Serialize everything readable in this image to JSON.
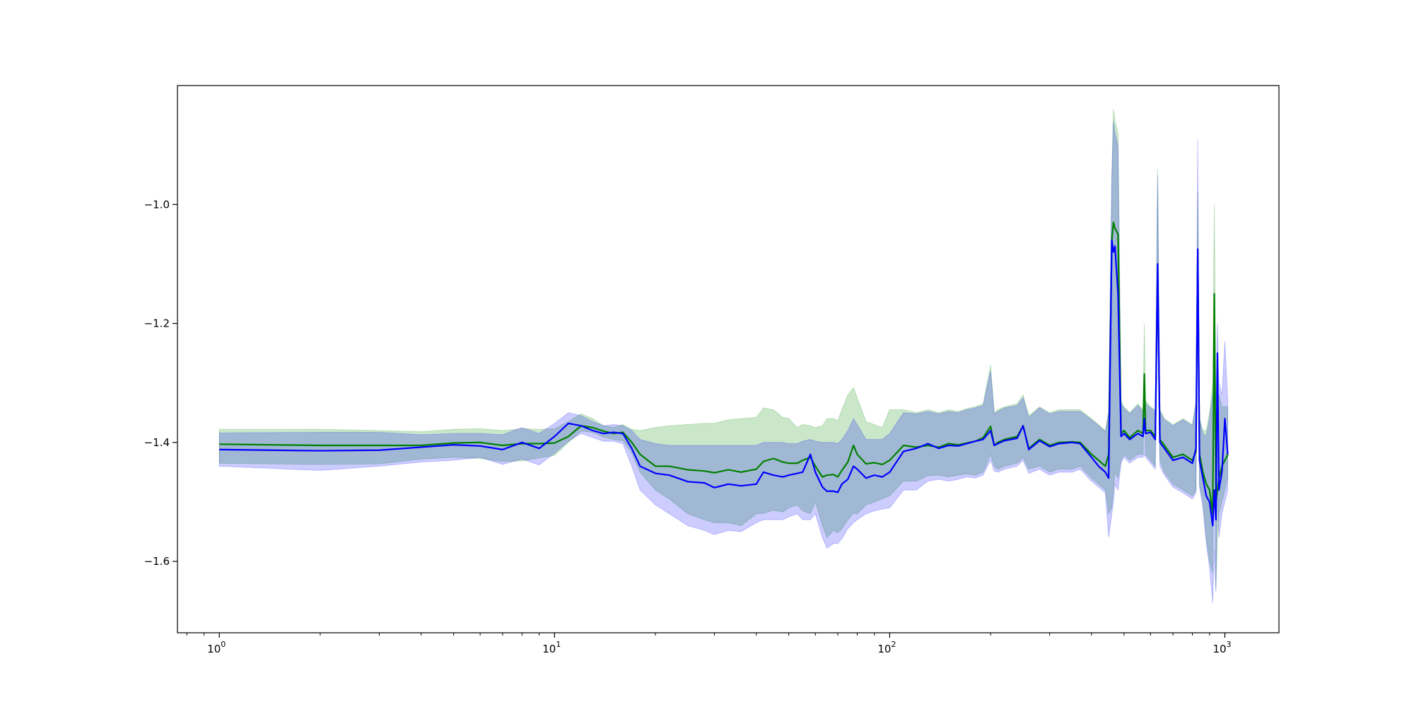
{
  "chart_data": {
    "type": "line",
    "title": "",
    "xlabel": "",
    "ylabel": "",
    "xscale": "log",
    "xlim": [
      0.75,
      1450
    ],
    "ylim": [
      -1.72,
      -0.8
    ],
    "grid": false,
    "legend": "none",
    "x_ticks": [
      {
        "value": 1,
        "base": "10",
        "exp": "0"
      },
      {
        "value": 10,
        "base": "10",
        "exp": "1"
      },
      {
        "value": 100,
        "base": "10",
        "exp": "2"
      },
      {
        "value": 1000,
        "base": "10",
        "exp": "3"
      }
    ],
    "y_ticks": [
      {
        "value": -1.6,
        "label": "−1.6"
      },
      {
        "value": -1.4,
        "label": "−1.4"
      },
      {
        "value": -1.2,
        "label": "−1.2"
      },
      {
        "value": -1.0,
        "label": "−1.0"
      }
    ],
    "series": [
      {
        "color": "#008000",
        "band_color": "#2ca02c",
        "band_opacity": 0.25,
        "x": [
          1,
          2,
          3,
          4,
          5,
          6,
          7,
          8,
          9,
          10,
          11,
          12,
          13,
          14,
          15,
          16,
          17,
          18,
          20,
          22,
          25,
          28,
          30,
          33,
          36,
          40,
          42,
          45,
          48,
          50,
          53,
          55,
          58,
          60,
          63,
          65,
          68,
          70,
          72,
          75,
          78,
          80,
          85,
          90,
          95,
          100,
          110,
          120,
          130,
          140,
          150,
          160,
          170,
          180,
          190,
          200,
          205,
          210,
          220,
          240,
          250,
          260,
          280,
          300,
          320,
          350,
          370,
          400,
          420,
          440,
          450,
          460,
          465,
          470,
          480,
          490,
          500,
          520,
          550,
          570,
          575,
          580,
          600,
          620,
          630,
          640,
          660,
          700,
          750,
          800,
          820,
          830,
          840,
          860,
          880,
          900,
          920,
          930,
          940,
          950,
          960,
          980,
          1000,
          1020
        ],
        "y": [
          -1.403,
          -1.405,
          -1.405,
          -1.405,
          -1.401,
          -1.4,
          -1.405,
          -1.402,
          -1.402,
          -1.401,
          -1.39,
          -1.372,
          -1.375,
          -1.381,
          -1.385,
          -1.383,
          -1.4,
          -1.42,
          -1.44,
          -1.44,
          -1.446,
          -1.448,
          -1.451,
          -1.446,
          -1.45,
          -1.445,
          -1.432,
          -1.427,
          -1.433,
          -1.435,
          -1.435,
          -1.43,
          -1.425,
          -1.44,
          -1.458,
          -1.455,
          -1.454,
          -1.458,
          -1.447,
          -1.433,
          -1.405,
          -1.42,
          -1.436,
          -1.434,
          -1.437,
          -1.43,
          -1.405,
          -1.408,
          -1.405,
          -1.408,
          -1.402,
          -1.404,
          -1.401,
          -1.398,
          -1.392,
          -1.373,
          -1.405,
          -1.4,
          -1.395,
          -1.39,
          -1.372,
          -1.41,
          -1.395,
          -1.405,
          -1.4,
          -1.399,
          -1.4,
          -1.42,
          -1.43,
          -1.44,
          -1.42,
          -1.06,
          -1.03,
          -1.04,
          -1.05,
          -1.385,
          -1.38,
          -1.392,
          -1.38,
          -1.385,
          -1.285,
          -1.38,
          -1.38,
          -1.39,
          -1.11,
          -1.395,
          -1.405,
          -1.425,
          -1.42,
          -1.43,
          -1.415,
          -1.08,
          -1.42,
          -1.45,
          -1.47,
          -1.48,
          -1.52,
          -1.15,
          -1.5,
          -1.48,
          -1.46,
          -1.44,
          -1.43,
          -1.42
        ],
        "lower": [
          -1.435,
          -1.437,
          -1.436,
          -1.428,
          -1.425,
          -1.427,
          -1.432,
          -1.431,
          -1.426,
          -1.422,
          -1.4,
          -1.381,
          -1.383,
          -1.391,
          -1.395,
          -1.397,
          -1.418,
          -1.45,
          -1.48,
          -1.495,
          -1.52,
          -1.53,
          -1.535,
          -1.535,
          -1.54,
          -1.52,
          -1.519,
          -1.514,
          -1.517,
          -1.51,
          -1.505,
          -1.515,
          -1.52,
          -1.5,
          -1.54,
          -1.56,
          -1.548,
          -1.552,
          -1.545,
          -1.53,
          -1.519,
          -1.52,
          -1.505,
          -1.5,
          -1.495,
          -1.49,
          -1.465,
          -1.465,
          -1.456,
          -1.455,
          -1.458,
          -1.455,
          -1.453,
          -1.455,
          -1.45,
          -1.42,
          -1.44,
          -1.445,
          -1.44,
          -1.435,
          -1.425,
          -1.445,
          -1.44,
          -1.45,
          -1.445,
          -1.445,
          -1.44,
          -1.46,
          -1.47,
          -1.48,
          -1.52,
          -1.51,
          -1.48,
          -1.45,
          -1.46,
          -1.43,
          -1.42,
          -1.43,
          -1.42,
          -1.42,
          -1.34,
          -1.42,
          -1.43,
          -1.44,
          -1.15,
          -1.43,
          -1.45,
          -1.47,
          -1.48,
          -1.49,
          -1.48,
          -1.15,
          -1.47,
          -1.5,
          -1.56,
          -1.6,
          -1.62,
          -1.22,
          -1.65,
          -1.56,
          -1.52,
          -1.5,
          -1.48,
          -1.46
        ],
        "upper": [
          -1.378,
          -1.378,
          -1.38,
          -1.382,
          -1.378,
          -1.377,
          -1.38,
          -1.377,
          -1.378,
          -1.377,
          -1.365,
          -1.352,
          -1.36,
          -1.372,
          -1.375,
          -1.37,
          -1.378,
          -1.38,
          -1.375,
          -1.372,
          -1.37,
          -1.368,
          -1.368,
          -1.362,
          -1.36,
          -1.358,
          -1.342,
          -1.345,
          -1.358,
          -1.36,
          -1.375,
          -1.37,
          -1.372,
          -1.375,
          -1.372,
          -1.36,
          -1.36,
          -1.364,
          -1.345,
          -1.32,
          -1.308,
          -1.325,
          -1.365,
          -1.37,
          -1.375,
          -1.345,
          -1.345,
          -1.35,
          -1.345,
          -1.35,
          -1.345,
          -1.348,
          -1.343,
          -1.34,
          -1.335,
          -1.27,
          -1.35,
          -1.345,
          -1.34,
          -1.335,
          -1.32,
          -1.355,
          -1.34,
          -1.35,
          -1.345,
          -1.345,
          -1.345,
          -1.36,
          -1.37,
          -1.38,
          -1.35,
          -0.96,
          -0.84,
          -0.86,
          -0.88,
          -1.33,
          -1.34,
          -1.35,
          -1.335,
          -1.345,
          -1.2,
          -1.33,
          -1.34,
          -1.345,
          -0.94,
          -1.345,
          -1.36,
          -1.37,
          -1.36,
          -1.37,
          -1.33,
          -0.98,
          -1.36,
          -1.38,
          -1.38,
          -1.35,
          -1.3,
          -1.0,
          -1.32,
          -1.33,
          -1.32,
          -1.34,
          -1.34,
          -1.34
        ]
      },
      {
        "color": "#0000ff",
        "band_color": "#0000ff",
        "band_opacity": 0.2,
        "x": [
          1,
          2,
          3,
          4,
          5,
          6,
          7,
          8,
          9,
          10,
          11,
          12,
          13,
          14,
          15,
          16,
          17,
          18,
          20,
          22,
          25,
          28,
          30,
          33,
          36,
          40,
          42,
          45,
          48,
          50,
          53,
          55,
          58,
          60,
          63,
          65,
          68,
          70,
          72,
          75,
          78,
          80,
          85,
          90,
          95,
          100,
          110,
          120,
          130,
          140,
          150,
          160,
          170,
          180,
          190,
          200,
          205,
          210,
          220,
          240,
          250,
          260,
          280,
          300,
          320,
          350,
          370,
          400,
          420,
          440,
          450,
          460,
          465,
          470,
          480,
          490,
          500,
          520,
          550,
          570,
          575,
          580,
          600,
          620,
          630,
          640,
          660,
          700,
          750,
          800,
          820,
          830,
          840,
          860,
          880,
          900,
          920,
          930,
          940,
          950,
          960,
          980,
          1000,
          1020
        ],
        "y": [
          -1.412,
          -1.414,
          -1.413,
          -1.408,
          -1.404,
          -1.406,
          -1.412,
          -1.4,
          -1.41,
          -1.39,
          -1.368,
          -1.372,
          -1.38,
          -1.385,
          -1.383,
          -1.385,
          -1.41,
          -1.44,
          -1.452,
          -1.455,
          -1.466,
          -1.468,
          -1.476,
          -1.47,
          -1.473,
          -1.47,
          -1.45,
          -1.455,
          -1.458,
          -1.455,
          -1.452,
          -1.45,
          -1.42,
          -1.45,
          -1.475,
          -1.482,
          -1.482,
          -1.484,
          -1.47,
          -1.462,
          -1.44,
          -1.445,
          -1.46,
          -1.455,
          -1.458,
          -1.45,
          -1.415,
          -1.41,
          -1.402,
          -1.41,
          -1.405,
          -1.406,
          -1.402,
          -1.398,
          -1.395,
          -1.38,
          -1.405,
          -1.402,
          -1.397,
          -1.393,
          -1.372,
          -1.412,
          -1.397,
          -1.407,
          -1.402,
          -1.4,
          -1.402,
          -1.425,
          -1.44,
          -1.45,
          -1.46,
          -1.06,
          -1.08,
          -1.07,
          -1.15,
          -1.39,
          -1.385,
          -1.395,
          -1.385,
          -1.39,
          -1.36,
          -1.385,
          -1.383,
          -1.395,
          -1.1,
          -1.4,
          -1.41,
          -1.43,
          -1.425,
          -1.435,
          -1.41,
          -1.075,
          -1.43,
          -1.46,
          -1.49,
          -1.5,
          -1.54,
          -1.48,
          -1.53,
          -1.25,
          -1.48,
          -1.45,
          -1.36,
          -1.42
        ],
        "lower": [
          -1.44,
          -1.447,
          -1.44,
          -1.433,
          -1.43,
          -1.425,
          -1.437,
          -1.428,
          -1.438,
          -1.418,
          -1.398,
          -1.385,
          -1.392,
          -1.398,
          -1.398,
          -1.402,
          -1.44,
          -1.48,
          -1.505,
          -1.52,
          -1.54,
          -1.548,
          -1.555,
          -1.548,
          -1.55,
          -1.535,
          -1.53,
          -1.53,
          -1.53,
          -1.525,
          -1.52,
          -1.53,
          -1.53,
          -1.52,
          -1.56,
          -1.578,
          -1.57,
          -1.57,
          -1.562,
          -1.545,
          -1.535,
          -1.53,
          -1.52,
          -1.515,
          -1.512,
          -1.51,
          -1.48,
          -1.48,
          -1.465,
          -1.462,
          -1.465,
          -1.462,
          -1.458,
          -1.46,
          -1.455,
          -1.43,
          -1.448,
          -1.45,
          -1.445,
          -1.44,
          -1.43,
          -1.452,
          -1.445,
          -1.455,
          -1.45,
          -1.45,
          -1.445,
          -1.465,
          -1.475,
          -1.485,
          -1.56,
          -1.52,
          -1.5,
          -1.47,
          -1.48,
          -1.435,
          -1.425,
          -1.435,
          -1.425,
          -1.425,
          -1.42,
          -1.425,
          -1.435,
          -1.445,
          -1.16,
          -1.44,
          -1.455,
          -1.475,
          -1.485,
          -1.495,
          -1.485,
          -1.17,
          -1.475,
          -1.51,
          -1.57,
          -1.61,
          -1.67,
          -1.58,
          -1.65,
          -1.48,
          -1.56,
          -1.52,
          -1.5,
          -1.48
        ],
        "upper": [
          -1.384,
          -1.383,
          -1.383,
          -1.387,
          -1.385,
          -1.385,
          -1.387,
          -1.375,
          -1.385,
          -1.368,
          -1.35,
          -1.355,
          -1.365,
          -1.372,
          -1.37,
          -1.372,
          -1.38,
          -1.395,
          -1.402,
          -1.405,
          -1.405,
          -1.405,
          -1.405,
          -1.405,
          -1.405,
          -1.405,
          -1.4,
          -1.4,
          -1.4,
          -1.402,
          -1.402,
          -1.398,
          -1.395,
          -1.398,
          -1.4,
          -1.4,
          -1.4,
          -1.402,
          -1.395,
          -1.38,
          -1.36,
          -1.37,
          -1.395,
          -1.395,
          -1.395,
          -1.385,
          -1.35,
          -1.352,
          -1.348,
          -1.352,
          -1.348,
          -1.35,
          -1.345,
          -1.342,
          -1.338,
          -1.28,
          -1.352,
          -1.348,
          -1.342,
          -1.338,
          -1.325,
          -1.358,
          -1.342,
          -1.352,
          -1.348,
          -1.348,
          -1.348,
          -1.362,
          -1.372,
          -1.382,
          -1.35,
          -0.95,
          -0.86,
          -0.88,
          -0.9,
          -1.335,
          -1.342,
          -1.352,
          -1.338,
          -1.348,
          -1.3,
          -1.335,
          -1.342,
          -1.348,
          -0.95,
          -1.348,
          -1.362,
          -1.372,
          -1.362,
          -1.372,
          -1.335,
          -0.89,
          -1.362,
          -1.385,
          -1.39,
          -1.36,
          -1.32,
          -1.3,
          -1.33,
          -1.2,
          -1.3,
          -1.32,
          -1.23,
          -1.33
        ]
      }
    ]
  }
}
